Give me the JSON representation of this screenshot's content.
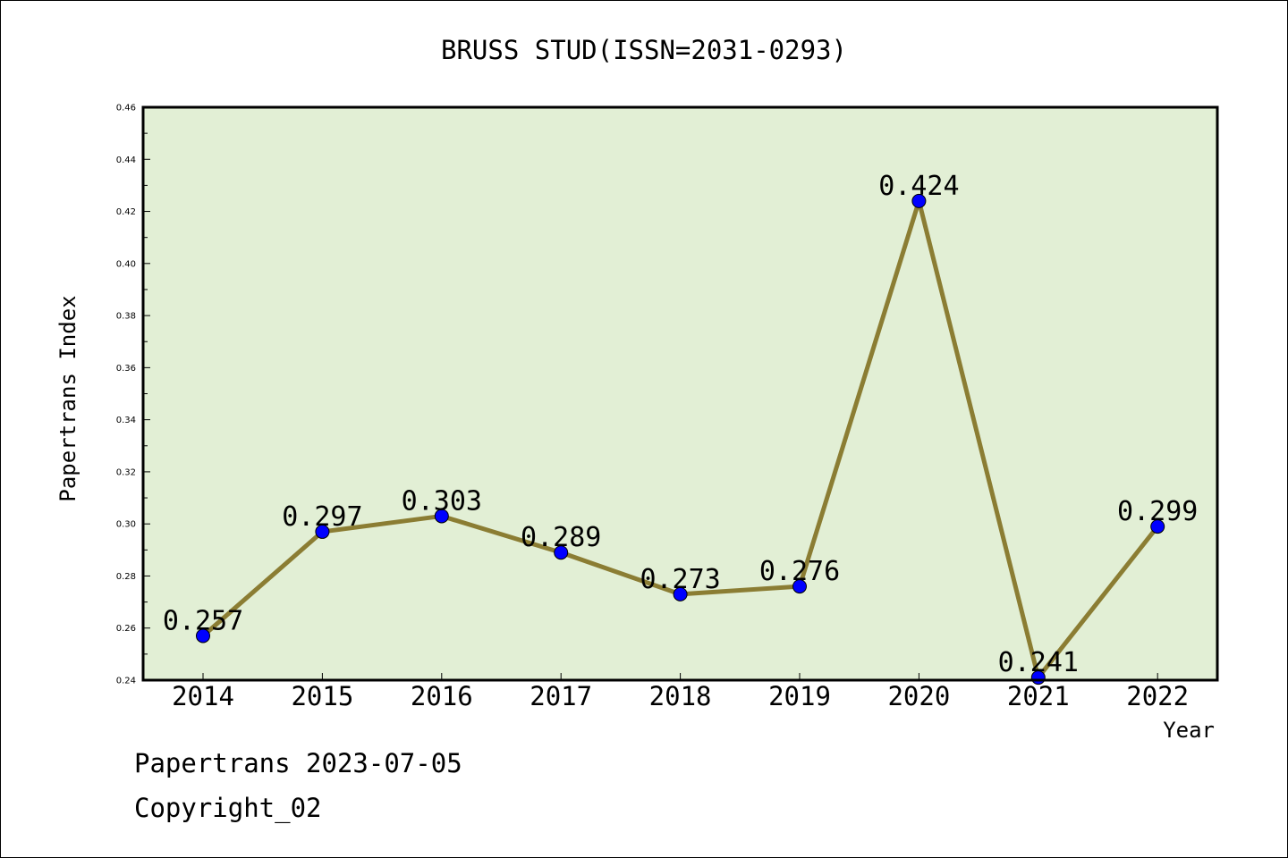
{
  "chart_data": {
    "type": "line",
    "title": "BRUSS STUD(ISSN=2031-0293)",
    "xlabel": "Year",
    "ylabel": "Papertrans Index",
    "categories": [
      "2014",
      "2015",
      "2016",
      "2017",
      "2018",
      "2019",
      "2020",
      "2021",
      "2022"
    ],
    "values": [
      0.257,
      0.297,
      0.303,
      0.289,
      0.273,
      0.276,
      0.424,
      0.241,
      0.299
    ],
    "data_labels": [
      "0.257",
      "0.297",
      "0.303",
      "0.289",
      "0.273",
      "0.276",
      "0.424",
      "0.241",
      "0.299"
    ],
    "ylim": [
      0.24,
      0.46
    ],
    "yticks": [
      "0.24",
      "0.26",
      "0.28",
      "0.30",
      "0.32",
      "0.34",
      "0.36",
      "0.38",
      "0.40",
      "0.42",
      "0.44",
      "0.46"
    ],
    "grid": false,
    "colors": {
      "plot_background": "#e2efd5",
      "line": "#8b7d33",
      "marker": "#0000ff"
    }
  },
  "footer": {
    "line1": "Papertrans 2023-07-05",
    "line2": "Copyright_02"
  }
}
